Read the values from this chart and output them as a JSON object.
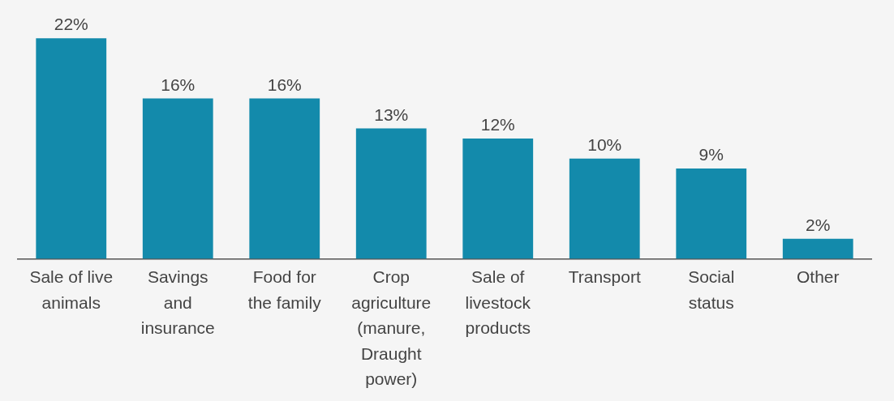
{
  "chart_data": {
    "type": "bar",
    "categories": [
      "Sale of live animals",
      "Savings and insurance",
      "Food for the family",
      "Crop agriculture (manure, Draught power)",
      "Sale of livestock products",
      "Transport",
      "Social status",
      "Other"
    ],
    "values": [
      22,
      16,
      16,
      13,
      12,
      10,
      9,
      2
    ],
    "color": "#138aab",
    "data_labels": true,
    "value_labels": [
      "22%",
      "16%",
      "16%",
      "13%",
      "12%",
      "10%",
      "9%",
      "2%"
    ],
    "grid": false,
    "legend": false,
    "tick_labels": "x"
  }
}
